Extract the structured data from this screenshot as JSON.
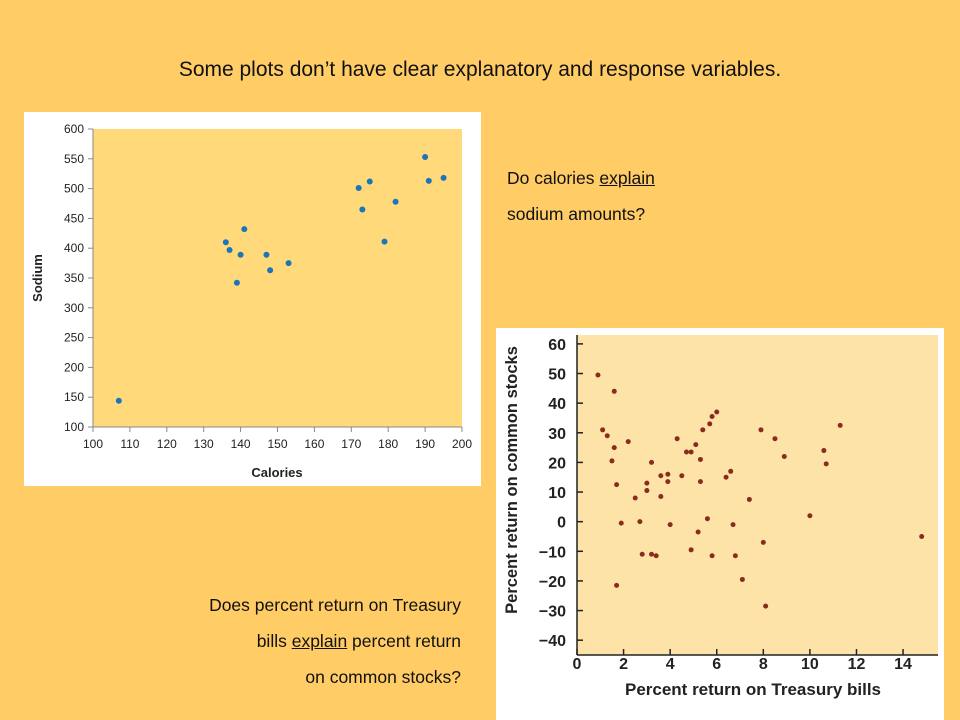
{
  "slide": {
    "title": "Some plots don’t have clear explanatory and response variables.",
    "q1": {
      "part1": "Do calories ",
      "keyword": "explain",
      "part2": "sodium amounts?"
    },
    "q2": {
      "line1": "Does percent return on Treasury",
      "line2_pre": "bills ",
      "keyword": "explain",
      "line2_post": " percent return",
      "line3": "on common stocks?"
    }
  },
  "colors": {
    "background": "#FFCC66",
    "plot1_bg": "#FFD97A",
    "plot1_dot": "#1C75B8",
    "plot2_bg": "#FEE3A8",
    "plot2_dot": "#8B2B1E"
  },
  "chart_data": [
    {
      "type": "scatter",
      "title": "",
      "xlabel": "Calories",
      "ylabel": "Sodium",
      "xlim": [
        100,
        200
      ],
      "ylim": [
        100,
        600
      ],
      "xticks": [
        100,
        110,
        120,
        130,
        140,
        150,
        160,
        170,
        180,
        190,
        200
      ],
      "yticks": [
        100,
        150,
        200,
        250,
        300,
        350,
        400,
        450,
        500,
        550,
        600
      ],
      "points": [
        [
          107,
          144
        ],
        [
          136,
          410
        ],
        [
          137,
          397
        ],
        [
          139,
          342
        ],
        [
          140,
          389
        ],
        [
          141,
          432
        ],
        [
          147,
          389
        ],
        [
          148,
          363
        ],
        [
          153,
          375
        ],
        [
          172,
          501
        ],
        [
          173,
          465
        ],
        [
          175,
          512
        ],
        [
          179,
          411
        ],
        [
          182,
          478
        ],
        [
          190,
          553
        ],
        [
          191,
          513
        ],
        [
          195,
          518
        ]
      ]
    },
    {
      "type": "scatter",
      "title": "",
      "xlabel": "Percent return on Treasury bills",
      "ylabel": "Percent return on common stocks",
      "xlim": [
        0,
        15.5
      ],
      "ylim": [
        -45,
        63
      ],
      "xticks": [
        0,
        2,
        4,
        6,
        8,
        10,
        12,
        14
      ],
      "yticks": [
        60,
        50,
        40,
        30,
        20,
        10,
        0,
        -10,
        -20,
        -30,
        -40
      ],
      "ytick_labels": [
        "60",
        "50",
        "40",
        "30",
        "20",
        "10",
        "0",
        "−10",
        "−20",
        "−30",
        "−40"
      ],
      "points": [
        [
          0.9,
          49.5
        ],
        [
          1.1,
          31
        ],
        [
          1.3,
          29
        ],
        [
          1.5,
          20.5
        ],
        [
          1.6,
          44
        ],
        [
          1.6,
          25
        ],
        [
          1.7,
          12.5
        ],
        [
          1.7,
          -21.5
        ],
        [
          1.9,
          -0.5
        ],
        [
          2.2,
          27
        ],
        [
          2.5,
          8
        ],
        [
          2.7,
          0
        ],
        [
          2.8,
          -11
        ],
        [
          3.0,
          10.5
        ],
        [
          3.0,
          13
        ],
        [
          3.2,
          20
        ],
        [
          3.2,
          -11
        ],
        [
          3.4,
          -11.5
        ],
        [
          3.6,
          8.5
        ],
        [
          3.6,
          15.5
        ],
        [
          3.9,
          16
        ],
        [
          3.9,
          13.5
        ],
        [
          4.0,
          -1
        ],
        [
          4.3,
          28
        ],
        [
          4.5,
          15.5
        ],
        [
          4.7,
          23.5
        ],
        [
          4.9,
          23.5
        ],
        [
          4.9,
          -9.5
        ],
        [
          5.1,
          26
        ],
        [
          5.2,
          -3.5
        ],
        [
          5.3,
          13.5
        ],
        [
          5.3,
          21
        ],
        [
          5.4,
          31
        ],
        [
          5.6,
          1
        ],
        [
          5.7,
          33
        ],
        [
          5.8,
          35.5
        ],
        [
          5.8,
          -11.5
        ],
        [
          6.0,
          37
        ],
        [
          6.4,
          15
        ],
        [
          6.6,
          17
        ],
        [
          6.7,
          -1
        ],
        [
          6.8,
          -11.5
        ],
        [
          7.1,
          -19.5
        ],
        [
          7.4,
          7.5
        ],
        [
          7.9,
          31
        ],
        [
          8.0,
          -7
        ],
        [
          8.1,
          -28.5
        ],
        [
          8.5,
          28
        ],
        [
          8.9,
          22
        ],
        [
          10.0,
          2
        ],
        [
          10.6,
          24
        ],
        [
          10.7,
          19.5
        ],
        [
          11.3,
          32.5
        ],
        [
          14.8,
          -5
        ]
      ]
    }
  ]
}
